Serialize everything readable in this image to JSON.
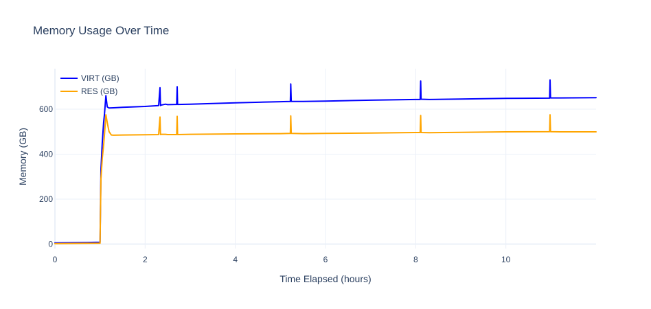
{
  "chart_data": {
    "type": "line",
    "title": "Memory Usage Over Time",
    "xlabel": "Time Elapsed (hours)",
    "ylabel": "Memory (GB)",
    "xlim": [
      0,
      12
    ],
    "ylim": [
      -20,
      780
    ],
    "x_ticks": [
      0,
      2,
      4,
      6,
      8,
      10
    ],
    "y_ticks": [
      0,
      200,
      400,
      600
    ],
    "grid": true,
    "legend_position": "top-left",
    "series": [
      {
        "name": "VIRT (GB)",
        "color": "#0000ff",
        "x": [
          0,
          1.0,
          1.02,
          1.05,
          1.08,
          1.1,
          1.13,
          1.16,
          1.2,
          1.3,
          1.5,
          2.0,
          2.3,
          2.33,
          2.34,
          2.35,
          2.45,
          2.5,
          2.7,
          2.71,
          2.72,
          3.0,
          4.0,
          5.0,
          5.22,
          5.23,
          5.24,
          5.5,
          6.0,
          7.0,
          8.0,
          8.1,
          8.11,
          8.12,
          8.3,
          9.0,
          10.0,
          10.97,
          10.98,
          10.99,
          11.2,
          12.0
        ],
        "y": [
          5,
          8,
          330,
          450,
          540,
          580,
          660,
          610,
          605,
          606,
          608,
          612,
          616,
          695,
          616,
          618,
          622,
          620,
          621,
          700,
          621,
          622,
          628,
          633,
          634,
          712,
          634,
          634,
          636,
          640,
          643,
          643,
          725,
          644,
          643,
          645,
          648,
          649,
          730,
          650,
          650,
          651
        ]
      },
      {
        "name": "RES (GB)",
        "color": "#ffa500",
        "x": [
          0,
          1.0,
          1.02,
          1.05,
          1.08,
          1.1,
          1.13,
          1.16,
          1.2,
          1.25,
          1.3,
          1.5,
          2.0,
          2.3,
          2.33,
          2.34,
          2.35,
          2.45,
          2.5,
          2.7,
          2.71,
          2.72,
          3.0,
          4.0,
          5.0,
          5.22,
          5.23,
          5.24,
          5.5,
          6.0,
          7.0,
          8.0,
          8.1,
          8.11,
          8.12,
          8.3,
          9.0,
          10.0,
          10.97,
          10.98,
          10.99,
          11.2,
          12.0
        ],
        "y": [
          2,
          4,
          290,
          380,
          440,
          490,
          575,
          540,
          500,
          485,
          484,
          485,
          486,
          487,
          565,
          487,
          488,
          488,
          487,
          487,
          568,
          487,
          488,
          490,
          491,
          492,
          570,
          492,
          491,
          492,
          494,
          496,
          496,
          572,
          496,
          495,
          497,
          499,
          500,
          575,
          500,
          499,
          499
        ]
      }
    ]
  }
}
